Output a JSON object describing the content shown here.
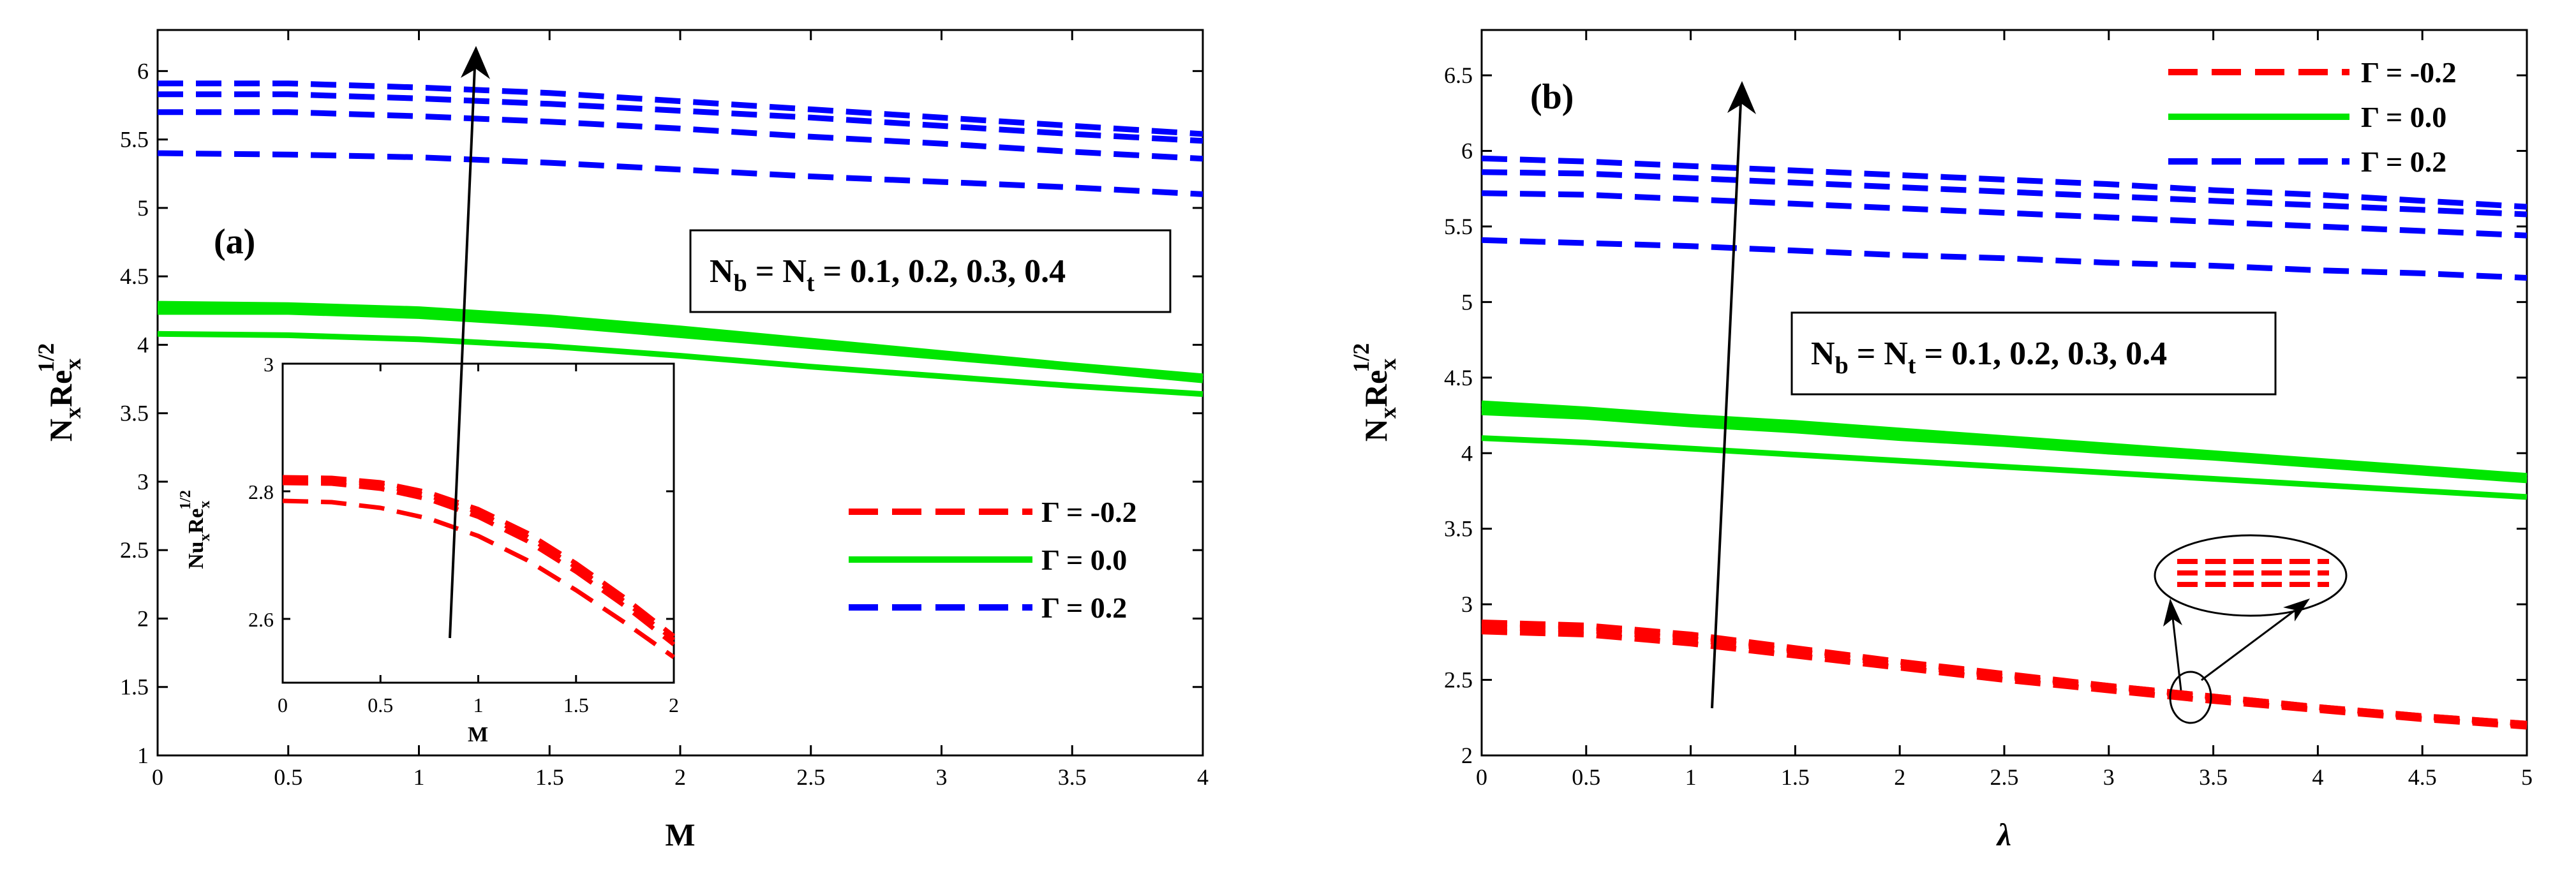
{
  "figure": {
    "panels": [
      "a",
      "b"
    ],
    "legend_header": "Γ = ",
    "series_names": [
      "Γ = -0.2",
      "Γ = 0.0",
      "Γ = 0.2"
    ]
  },
  "colors": {
    "red": "#ff0000",
    "green": "#00e600",
    "blue": "#0000ff"
  },
  "chart_data": [
    {
      "id": "a",
      "type": "line",
      "panel_label": "(a)",
      "xlabel": "M",
      "ylabel": "N_x Re_x^{1/2}",
      "ylabel_main": "N",
      "ylabel_sub1": "x",
      "ylabel_re": "Re",
      "ylabel_sub2": "x",
      "ylabel_sup": "1/2",
      "xlim": [
        0,
        4
      ],
      "ylim": [
        1,
        6.3
      ],
      "xticks": [
        0,
        0.5,
        1,
        1.5,
        2,
        2.5,
        3,
        3.5,
        4
      ],
      "xtick_labels": [
        "0",
        "0.5",
        "1",
        "1.5",
        "2",
        "2.5",
        "3",
        "3.5",
        "4"
      ],
      "yticks": [
        1,
        1.5,
        2,
        2.5,
        3,
        3.5,
        4,
        4.5,
        5,
        5.5,
        6
      ],
      "ytick_labels": [
        "1",
        "1.5",
        "2",
        "2.5",
        "3",
        "3.5",
        "4",
        "4.5",
        "5",
        "5.5",
        "6"
      ],
      "annotation": {
        "prefix": "N",
        "sub1": "b",
        "mid": " = N",
        "sub2": "t",
        "suffix": " = 0.1, 0.2, 0.3, 0.4"
      },
      "legend": [
        "Γ = -0.2",
        "Γ = 0.0",
        "Γ = 0.2"
      ],
      "x": [
        0,
        0.5,
        1,
        1.5,
        2,
        2.5,
        3,
        3.5,
        4
      ],
      "series": [
        {
          "name": "Γ = 0.2 (Nb=Nt=0.1)",
          "color": "blue",
          "dash": true,
          "values": [
            5.4,
            5.39,
            5.37,
            5.33,
            5.28,
            5.23,
            5.19,
            5.15,
            5.1
          ]
        },
        {
          "name": "Γ = 0.2 (Nb=Nt=0.2)",
          "color": "blue",
          "dash": true,
          "values": [
            5.7,
            5.7,
            5.67,
            5.63,
            5.58,
            5.52,
            5.47,
            5.41,
            5.36
          ]
        },
        {
          "name": "Γ = 0.2 (Nb=Nt=0.3)",
          "color": "blue",
          "dash": true,
          "values": [
            5.83,
            5.83,
            5.8,
            5.76,
            5.71,
            5.66,
            5.6,
            5.54,
            5.49
          ]
        },
        {
          "name": "Γ = 0.2 (Nb=Nt=0.4)",
          "color": "blue",
          "dash": true,
          "values": [
            5.91,
            5.91,
            5.88,
            5.84,
            5.78,
            5.72,
            5.66,
            5.6,
            5.54
          ]
        },
        {
          "name": "Γ = 0.0 (Nb=Nt=0.1)",
          "color": "green",
          "dash": false,
          "values": [
            4.08,
            4.07,
            4.04,
            3.99,
            3.92,
            3.84,
            3.77,
            3.7,
            3.64
          ]
        },
        {
          "name": "Γ = 0.0 (Nb=Nt=0.2)",
          "color": "green",
          "dash": false,
          "values": [
            4.24,
            4.24,
            4.21,
            4.15,
            4.07,
            3.99,
            3.91,
            3.83,
            3.74
          ]
        },
        {
          "name": "Γ = 0.0 (Nb=Nt=0.3)",
          "color": "green",
          "dash": false,
          "values": [
            4.28,
            4.27,
            4.24,
            4.18,
            4.1,
            4.01,
            3.93,
            3.84,
            3.76
          ]
        },
        {
          "name": "Γ = 0.0 (Nb=Nt=0.4)",
          "color": "green",
          "dash": false,
          "values": [
            4.3,
            4.29,
            4.26,
            4.2,
            4.12,
            4.03,
            3.94,
            3.85,
            3.77
          ]
        }
      ],
      "inset": {
        "xlabel": "M",
        "ylabel_main": "Nu",
        "ylabel_sub1": "x",
        "ylabel_re": "Re",
        "ylabel_sub2": "x",
        "ylabel_sup": "1/2",
        "xlim": [
          0,
          2
        ],
        "ylim": [
          2.5,
          3.0
        ],
        "xticks": [
          0,
          0.5,
          1,
          1.5,
          2
        ],
        "xtick_labels": [
          "0",
          "0.5",
          "1",
          "1.5",
          "2"
        ],
        "yticks": [
          2.6,
          2.8,
          3.0
        ],
        "ytick_labels": [
          "2.6",
          "2.8",
          "3"
        ],
        "x": [
          0,
          0.25,
          0.5,
          0.75,
          1.0,
          1.25,
          1.5,
          1.75,
          2.0
        ],
        "series": [
          {
            "name": "Γ = -0.2 (Nb=Nt=0.1)",
            "color": "red",
            "values": [
              2.785,
              2.783,
              2.774,
              2.757,
              2.73,
              2.692,
              2.645,
              2.594,
              2.54
            ]
          },
          {
            "name": "Γ = -0.2 (Nb=Nt=0.2)",
            "color": "red",
            "values": [
              2.813,
              2.812,
              2.804,
              2.787,
              2.76,
              2.722,
              2.674,
              2.62,
              2.56
            ]
          },
          {
            "name": "Γ = -0.2 (Nb=Nt=0.3)",
            "color": "red",
            "values": [
              2.818,
              2.817,
              2.81,
              2.793,
              2.767,
              2.729,
              2.681,
              2.627,
              2.567
            ]
          },
          {
            "name": "Γ = -0.2 (Nb=Nt=0.4)",
            "color": "red",
            "values": [
              2.822,
              2.821,
              2.814,
              2.798,
              2.772,
              2.735,
              2.687,
              2.633,
              2.573
            ]
          }
        ]
      }
    },
    {
      "id": "b",
      "type": "line",
      "panel_label": "(b)",
      "xlabel": "λ",
      "ylabel": "N_x Re_x^{1/2}",
      "ylabel_main": "N",
      "ylabel_sub1": "x",
      "ylabel_re": "Re",
      "ylabel_sub2": "x",
      "ylabel_sup": "1/2",
      "xlim": [
        0,
        5
      ],
      "ylim": [
        2,
        6.8
      ],
      "xticks": [
        0,
        0.5,
        1,
        1.5,
        2,
        2.5,
        3,
        3.5,
        4,
        4.5,
        5
      ],
      "xtick_labels": [
        "0",
        "0.5",
        "1",
        "1.5",
        "2",
        "2.5",
        "3",
        "3.5",
        "4",
        "4.5",
        "5"
      ],
      "yticks": [
        2,
        2.5,
        3,
        3.5,
        4,
        4.5,
        5,
        5.5,
        6,
        6.5
      ],
      "ytick_labels": [
        "2",
        "2.5",
        "3",
        "3.5",
        "4",
        "4.5",
        "5",
        "5.5",
        "6",
        "6.5"
      ],
      "annotation": {
        "prefix": "N",
        "sub1": "b",
        "mid": " = N",
        "sub2": "t",
        "suffix": " = 0.1, 0.2, 0.3, 0.4"
      },
      "legend": [
        "Γ = -0.2",
        "Γ = 0.0",
        "Γ = 0.2"
      ],
      "x": [
        0,
        0.5,
        1,
        1.5,
        2,
        2.5,
        3,
        3.5,
        4,
        4.5,
        5
      ],
      "series": [
        {
          "name": "Γ = 0.2 (Nb=Nt=0.1)",
          "color": "blue",
          "dash": true,
          "values": [
            5.41,
            5.39,
            5.37,
            5.34,
            5.31,
            5.29,
            5.26,
            5.24,
            5.21,
            5.19,
            5.16
          ]
        },
        {
          "name": "Γ = 0.2 (Nb=Nt=0.2)",
          "color": "blue",
          "dash": true,
          "values": [
            5.72,
            5.71,
            5.68,
            5.65,
            5.62,
            5.59,
            5.56,
            5.53,
            5.5,
            5.47,
            5.44
          ]
        },
        {
          "name": "Γ = 0.2 (Nb=Nt=0.3)",
          "color": "blue",
          "dash": true,
          "values": [
            5.86,
            5.85,
            5.82,
            5.79,
            5.76,
            5.73,
            5.7,
            5.67,
            5.64,
            5.61,
            5.58
          ]
        },
        {
          "name": "Γ = 0.2 (Nb=Nt=0.4)",
          "color": "blue",
          "dash": true,
          "values": [
            5.95,
            5.93,
            5.9,
            5.87,
            5.84,
            5.81,
            5.78,
            5.74,
            5.71,
            5.67,
            5.63
          ]
        },
        {
          "name": "Γ = 0.0 (Nb=Nt=0.1)",
          "color": "green",
          "dash": false,
          "values": [
            4.1,
            4.07,
            4.03,
            3.99,
            3.95,
            3.91,
            3.87,
            3.83,
            3.79,
            3.75,
            3.71
          ]
        },
        {
          "name": "Γ = 0.0 (Nb=Nt=0.2)",
          "color": "green",
          "dash": false,
          "values": [
            4.27,
            4.24,
            4.19,
            4.15,
            4.1,
            4.06,
            4.01,
            3.97,
            3.92,
            3.87,
            3.82
          ]
        },
        {
          "name": "Γ = 0.0 (Nb=Nt=0.3)",
          "color": "green",
          "dash": false,
          "values": [
            4.3,
            4.27,
            4.22,
            4.18,
            4.13,
            4.08,
            4.04,
            3.99,
            3.94,
            3.89,
            3.84
          ]
        },
        {
          "name": "Γ = 0.0 (Nb=Nt=0.4)",
          "color": "green",
          "dash": false,
          "values": [
            4.33,
            4.29,
            4.24,
            4.2,
            4.15,
            4.1,
            4.05,
            4.0,
            3.95,
            3.9,
            3.85
          ]
        },
        {
          "name": "Γ = -0.2 (Nb=Nt=0.1)",
          "color": "red",
          "dash": true,
          "values": [
            2.82,
            2.8,
            2.74,
            2.66,
            2.58,
            2.5,
            2.43,
            2.36,
            2.3,
            2.24,
            2.19
          ]
        },
        {
          "name": "Γ = -0.2 (Nb=Nt=0.2)",
          "color": "red",
          "dash": true,
          "values": [
            2.85,
            2.83,
            2.77,
            2.69,
            2.6,
            2.52,
            2.45,
            2.38,
            2.31,
            2.25,
            2.2
          ]
        },
        {
          "name": "Γ = -0.2 (Nb=Nt=0.3)",
          "color": "red",
          "dash": true,
          "values": [
            2.87,
            2.85,
            2.79,
            2.7,
            2.62,
            2.53,
            2.46,
            2.39,
            2.32,
            2.26,
            2.21
          ]
        },
        {
          "name": "Γ = -0.2 (Nb=Nt=0.4)",
          "color": "red",
          "dash": true,
          "values": [
            2.88,
            2.86,
            2.8,
            2.71,
            2.62,
            2.54,
            2.46,
            2.39,
            2.32,
            2.26,
            2.21
          ]
        }
      ]
    }
  ]
}
